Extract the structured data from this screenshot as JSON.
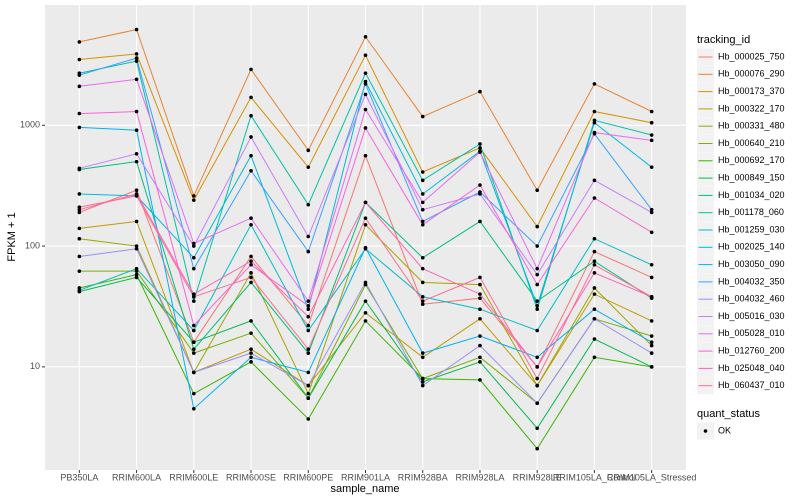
{
  "chart_data": {
    "type": "line",
    "log_y": true,
    "grid": true,
    "x_label": "sample_name",
    "y_label": "FPKM + 1",
    "categories": [
      "PB350LA",
      "RRIM600LA",
      "RRIM600LE",
      "RRIM600SE",
      "RRIM600PE",
      "RRIM901LA",
      "RRIM928BA",
      "RRIM928LA",
      "RRIM928LE",
      "RRIM105LA_Control",
      "RRIM105LA_Stressed"
    ],
    "ylim": [
      1.4,
      9900
    ],
    "yticks": [
      10,
      100,
      1000
    ],
    "legend_title": "tracking_id",
    "legend_position": "right",
    "point_legend": {
      "title": "quant_status",
      "labels": [
        "OK"
      ],
      "color": "#000000"
    },
    "series": [
      {
        "name": "Hb_000025_750",
        "color": "#F8766D",
        "values": [
          190,
          290,
          16,
          82,
          22,
          560,
          33,
          37,
          10,
          90,
          55
        ]
      },
      {
        "name": "Hb_000076_290",
        "color": "#EA8331",
        "values": [
          4900,
          6200,
          260,
          2900,
          620,
          5400,
          1180,
          1900,
          290,
          2200,
          1300
        ]
      },
      {
        "name": "Hb_000173_370",
        "color": "#D89000",
        "values": [
          3500,
          3900,
          240,
          1700,
          450,
          3800,
          410,
          650,
          145,
          1300,
          1050
        ]
      },
      {
        "name": "Hb_000322_170",
        "color": "#C09B00",
        "values": [
          140,
          160,
          9,
          14,
          7,
          28,
          12,
          25,
          7,
          40,
          24
        ]
      },
      {
        "name": "Hb_000331_480",
        "color": "#A3A500",
        "values": [
          115,
          100,
          9,
          60,
          6,
          150,
          50,
          48,
          7,
          45,
          15
        ]
      },
      {
        "name": "Hb_000640_210",
        "color": "#7CAE00",
        "values": [
          62,
          62,
          13,
          19,
          5.5,
          48,
          8,
          12,
          5,
          25,
          18
        ]
      },
      {
        "name": "Hb_000692_170",
        "color": "#39B600",
        "values": [
          45,
          58,
          6,
          11,
          3.7,
          24,
          8,
          7.8,
          2.1,
          12,
          10
        ]
      },
      {
        "name": "Hb_000849_150",
        "color": "#00BB4E",
        "values": [
          42,
          55,
          16,
          24,
          5.5,
          35,
          7.5,
          11,
          3.1,
          17,
          10
        ]
      },
      {
        "name": "Hb_001034_020",
        "color": "#00BF7D",
        "values": [
          430,
          500,
          14,
          50,
          13,
          230,
          80,
          160,
          35,
          75,
          37
        ]
      },
      {
        "name": "Hb_001178_060",
        "color": "#00C1A3",
        "values": [
          2700,
          3400,
          35,
          1200,
          220,
          2700,
          350,
          700,
          30,
          1100,
          830
        ]
      },
      {
        "name": "Hb_001259_030",
        "color": "#00BFC4",
        "values": [
          43,
          65,
          20,
          150,
          20,
          95,
          38,
          30,
          20,
          115,
          70
        ]
      },
      {
        "name": "Hb_002025_140",
        "color": "#00BAE0",
        "values": [
          270,
          260,
          80,
          560,
          30,
          2300,
          270,
          610,
          32,
          1050,
          450
        ]
      },
      {
        "name": "Hb_003050_090",
        "color": "#00B0F6",
        "values": [
          960,
          910,
          4.5,
          12,
          9,
          97,
          13,
          18,
          12,
          30,
          16
        ]
      },
      {
        "name": "Hb_004032_350",
        "color": "#35A2FF",
        "values": [
          2600,
          3600,
          65,
          420,
          90,
          2200,
          160,
          280,
          100,
          850,
          200
        ]
      },
      {
        "name": "Hb_004032_460",
        "color": "#9590FF",
        "values": [
          82,
          95,
          9,
          13,
          7,
          50,
          7,
          15,
          5,
          25,
          13
        ]
      },
      {
        "name": "Hb_005016_030",
        "color": "#C77CFF",
        "values": [
          440,
          580,
          100,
          800,
          120,
          1800,
          200,
          270,
          58,
          350,
          190
        ]
      },
      {
        "name": "Hb_005028_010",
        "color": "#E76BF3",
        "values": [
          2100,
          2400,
          105,
          170,
          35,
          1350,
          230,
          600,
          65,
          870,
          750
        ]
      },
      {
        "name": "Hb_012760_200",
        "color": "#FA62DB",
        "values": [
          1250,
          1300,
          22,
          70,
          32,
          950,
          150,
          320,
          48,
          250,
          130
        ]
      },
      {
        "name": "Hb_025048_040",
        "color": "#FF62BC",
        "values": [
          200,
          270,
          40,
          75,
          26,
          230,
          65,
          40,
          10,
          60,
          38
        ]
      },
      {
        "name": "Hb_060437_010",
        "color": "#FF6C91",
        "values": [
          210,
          260,
          38,
          55,
          14,
          170,
          35,
          55,
          8,
          70,
          38
        ]
      }
    ]
  }
}
